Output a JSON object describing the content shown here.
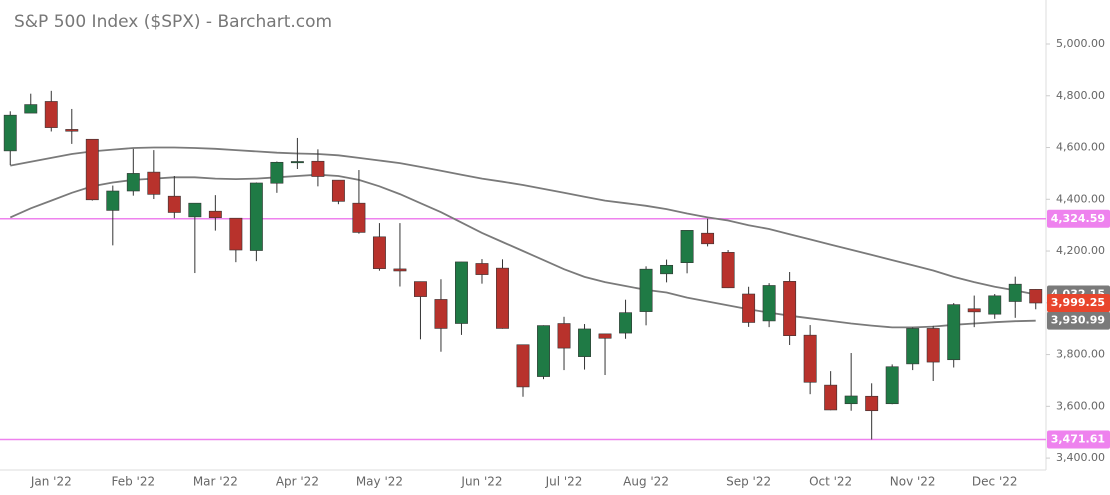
{
  "chart_data": {
    "type": "candlestick",
    "title": "S&P 500 Index ($SPX) - Barchart.com",
    "categories": [
      null,
      null,
      "Jan '22",
      null,
      null,
      null,
      "Feb '22",
      null,
      null,
      null,
      "Mar '22",
      null,
      null,
      null,
      "Apr '22",
      null,
      null,
      null,
      "May '22",
      null,
      null,
      null,
      null,
      "Jun '22",
      null,
      null,
      null,
      "Jul '22",
      null,
      null,
      null,
      "Aug '22",
      null,
      null,
      null,
      null,
      "Sep '22",
      null,
      null,
      null,
      "Oct '22",
      null,
      null,
      null,
      "Nov '22",
      null,
      null,
      null,
      "Dec '22",
      null,
      null
    ],
    "open": [
      4587,
      4733,
      4778,
      4670,
      4632,
      4357,
      4432,
      4505,
      4412,
      4332,
      4354,
      4327,
      4202,
      4462,
      4541,
      4547,
      4474,
      4385,
      4255,
      4131,
      4082,
      4013,
      3920,
      4152,
      4134,
      3838,
      3715,
      3920,
      3792,
      3880,
      3883,
      3966,
      4112,
      4155,
      4269,
      4195,
      4034,
      3930,
      4083,
      3875,
      3682,
      3610,
      3639,
      3610,
      3764,
      3901,
      3780,
      3977,
      3956,
      4005,
      4052
    ],
    "high": [
      4740,
      4808,
      4819,
      4749,
      4632,
      4453,
      4595,
      4590,
      4490,
      4385,
      4416,
      4327,
      4465,
      4546,
      4637,
      4593,
      4474,
      4513,
      4308,
      4308,
      4082,
      4091,
      4158,
      4169,
      4168,
      3838,
      3913,
      3946,
      3918,
      3880,
      4012,
      4141,
      4167,
      4280,
      4325,
      4204,
      4062,
      4076,
      4119,
      3914,
      3736,
      3806,
      3689,
      3762,
      3905,
      3911,
      3999,
      4028,
      4034,
      4101,
      4053
    ],
    "low": [
      4532,
      4733,
      4662,
      4614,
      4395,
      4222,
      4414,
      4401,
      4327,
      4115,
      4279,
      4157,
      4161,
      4425,
      4517,
      4450,
      4381,
      4267,
      4124,
      4063,
      3859,
      3811,
      3876,
      4074,
      3900,
      3637,
      3705,
      3740,
      3742,
      3721,
      3861,
      3913,
      4079,
      4114,
      4218,
      4057,
      3907,
      3906,
      3837,
      3647,
      3585,
      3583,
      3472,
      3608,
      3740,
      3698,
      3750,
      3906,
      3938,
      3942,
      3975
    ],
    "close": [
      4725,
      4766,
      4677,
      4663,
      4398,
      4432,
      4500,
      4419,
      4349,
      4385,
      4329,
      4204,
      4463,
      4543,
      4546,
      4488,
      4392,
      4272,
      4132,
      4123,
      4024,
      3901,
      4158,
      4109,
      3901,
      3675,
      3912,
      3825,
      3899,
      3863,
      3962,
      4130,
      4145,
      4280,
      4228,
      4058,
      3924,
      4067,
      3873,
      3693,
      3586,
      3640,
      3583,
      3753,
      3901,
      3771,
      3993,
      3965,
      4027,
      4072,
      3999.25
    ],
    "up_color": "#1f7a45",
    "down_color": "#b8322c",
    "last_label": "3,999.25",
    "last_color": "#e8452c",
    "overlays": [
      {
        "color": "#7a7a7a",
        "end_label": "4,032.15",
        "values": [
          4530,
          4545,
          4560,
          4575,
          4585,
          4592,
          4598,
          4600,
          4600,
          4598,
          4595,
          4590,
          4585,
          4580,
          4577,
          4575,
          4570,
          4560,
          4550,
          4540,
          4525,
          4510,
          4495,
          4480,
          4468,
          4455,
          4440,
          4425,
          4410,
          4395,
          4385,
          4375,
          4362,
          4345,
          4330,
          4318,
          4300,
          4285,
          4265,
          4245,
          4225,
          4205,
          4185,
          4165,
          4145,
          4125,
          4100,
          4080,
          4062,
          4048,
          4032.15
        ]
      },
      {
        "color": "#7a7a7a",
        "end_label": "3,930.99",
        "values": [
          4330,
          4365,
          4395,
          4425,
          4450,
          4465,
          4475,
          4480,
          4485,
          4485,
          4480,
          4478,
          4480,
          4485,
          4490,
          4495,
          4490,
          4475,
          4450,
          4420,
          4385,
          4350,
          4310,
          4270,
          4235,
          4200,
          4165,
          4130,
          4100,
          4080,
          4065,
          4050,
          4040,
          4020,
          4005,
          3990,
          3975,
          3962,
          3950,
          3940,
          3930,
          3920,
          3912,
          3905,
          3905,
          3908,
          3915,
          3920,
          3925,
          3929,
          3930.99
        ]
      }
    ],
    "levels": [
      {
        "value": 4324.59,
        "label": "4,324.59",
        "color": "#ee82ee"
      },
      {
        "value": 3471.61,
        "label": "3,471.61",
        "color": "#ee82ee"
      }
    ],
    "ylim": [
      3354,
      5170
    ],
    "yticks": [
      {
        "value": 3400,
        "label": "3,400.00"
      },
      {
        "value": 3600,
        "label": "3,600.00"
      },
      {
        "value": 3800,
        "label": "3,800.00"
      },
      {
        "value": 4000,
        "label": "4,000.00"
      },
      {
        "value": 4200,
        "label": "4,200.00"
      },
      {
        "value": 4400,
        "label": "4,400.00"
      },
      {
        "value": 4600,
        "label": "4,600.00"
      },
      {
        "value": 4800,
        "label": "4,800.00"
      },
      {
        "value": 5000,
        "label": "5,000.00"
      }
    ],
    "grid": false
  }
}
